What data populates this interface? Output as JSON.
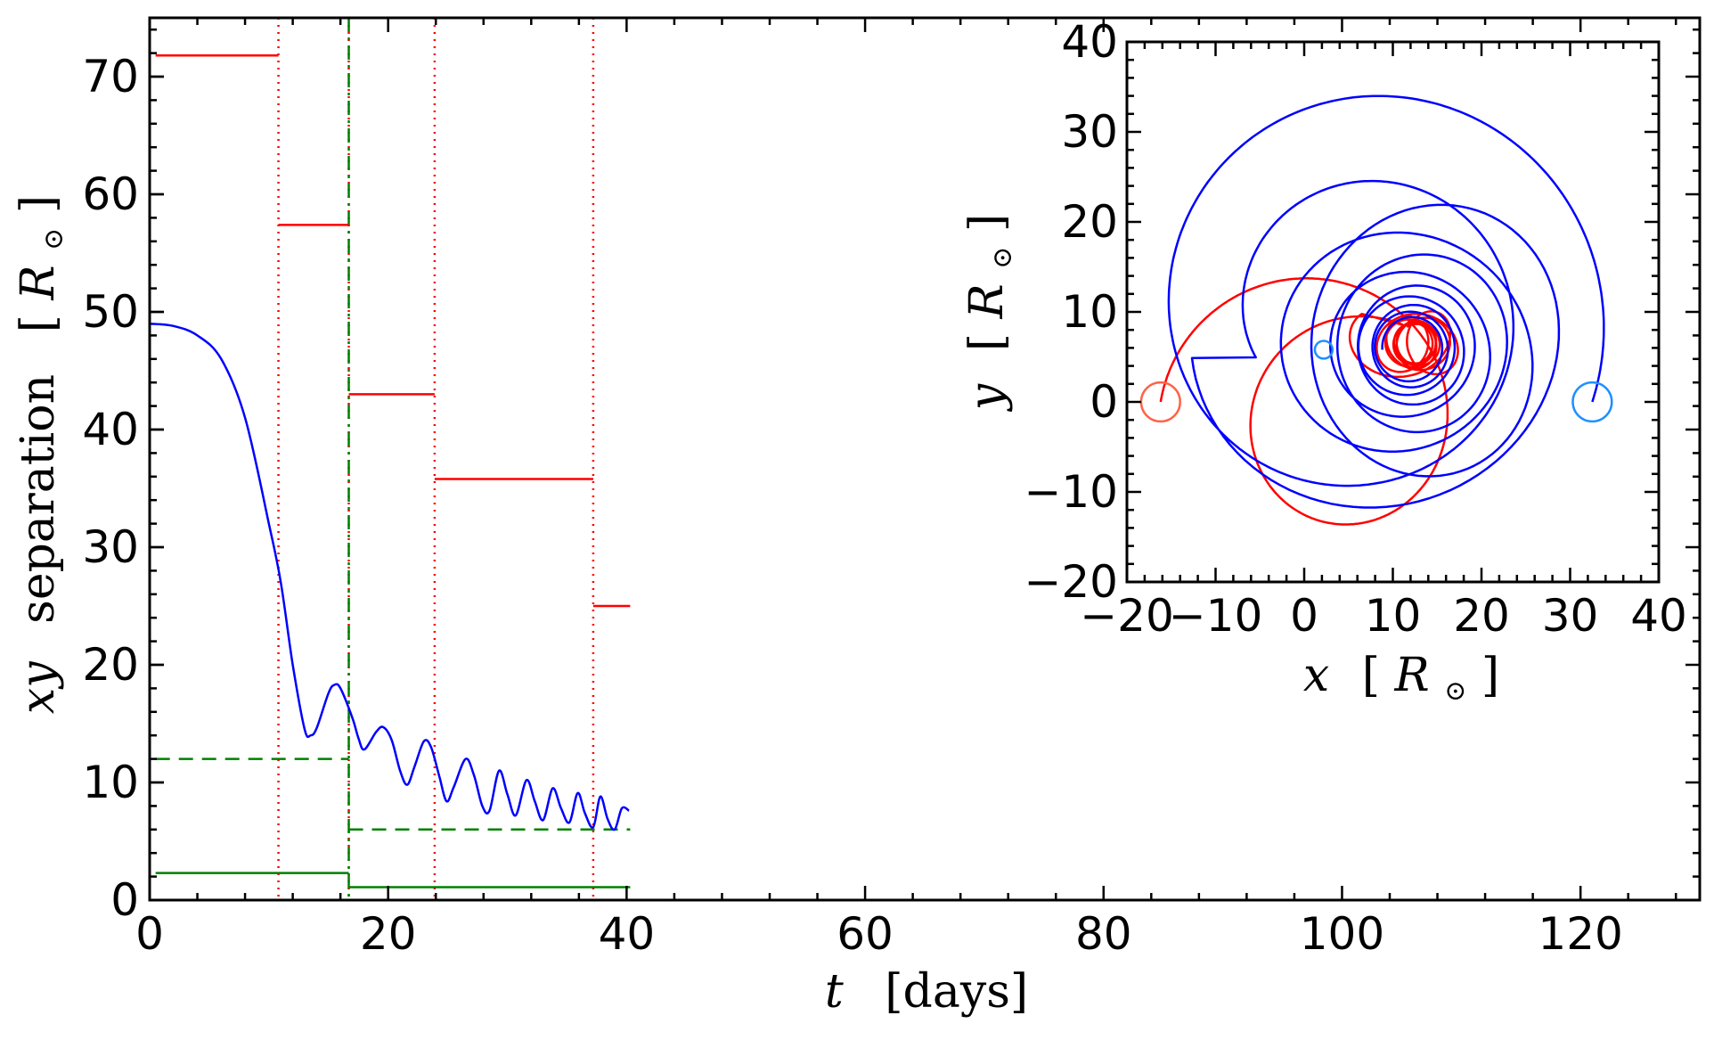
{
  "chart_data": [
    {
      "type": "line",
      "title": "",
      "xlabel_var": "t",
      "xlabel_unit": "[days]",
      "ylabel_var": "xy",
      "ylabel_word": "separation",
      "ylabel_unit_bracket_open": "[",
      "ylabel_unit_var": "R",
      "ylabel_unit_sub": "⊙",
      "ylabel_unit_bracket_close": "]",
      "xlim": [
        0,
        130
      ],
      "ylim": [
        0,
        75
      ],
      "xticks": [
        0,
        20,
        40,
        60,
        80,
        100,
        120
      ],
      "yticks": [
        0,
        10,
        20,
        30,
        40,
        50,
        60,
        70
      ],
      "grid": false,
      "colors": {
        "separation": "#0000ff",
        "red": "#ff0000",
        "green": "#008000"
      },
      "separation_curve": {
        "color": "#0000ff",
        "points": [
          [
            0,
            49
          ],
          [
            2,
            48.8
          ],
          [
            4,
            48
          ],
          [
            6,
            46
          ],
          [
            8,
            41
          ],
          [
            10,
            32
          ],
          [
            11,
            27
          ],
          [
            12,
            20
          ],
          [
            13,
            14.5
          ],
          [
            13.5,
            14
          ],
          [
            14,
            14.6
          ],
          [
            15,
            17.6
          ],
          [
            15.5,
            18.3
          ],
          [
            16,
            18
          ],
          [
            17,
            15.5
          ],
          [
            17.5,
            13.8
          ],
          [
            18,
            12.8
          ],
          [
            19,
            14.3
          ],
          [
            19.6,
            14.7
          ],
          [
            20.3,
            13.6
          ],
          [
            21,
            11
          ],
          [
            21.6,
            9.8
          ],
          [
            22.2,
            11.3
          ],
          [
            23,
            13.5
          ],
          [
            23.6,
            13
          ],
          [
            24.3,
            10.5
          ],
          [
            24.9,
            8.4
          ],
          [
            25.5,
            9.6
          ],
          [
            26.5,
            12
          ],
          [
            27.2,
            10.6
          ],
          [
            27.9,
            8
          ],
          [
            28.5,
            7.6
          ],
          [
            29.3,
            11
          ],
          [
            30,
            9
          ],
          [
            30.7,
            7.2
          ],
          [
            31.6,
            10.2
          ],
          [
            32.3,
            8.4
          ],
          [
            33,
            6.8
          ],
          [
            33.8,
            9.5
          ],
          [
            34.5,
            7.8
          ],
          [
            35.2,
            6.6
          ],
          [
            35.9,
            9.1
          ],
          [
            36.5,
            7.4
          ],
          [
            37.2,
            6.2
          ],
          [
            37.8,
            8.8
          ],
          [
            38.4,
            6.9
          ],
          [
            39,
            6
          ],
          [
            39.6,
            7.8
          ],
          [
            40.2,
            7.6
          ]
        ]
      },
      "red_steps": [
        {
          "x0": 0.5,
          "x1": 10.8,
          "y": 71.8
        },
        {
          "x0": 10.8,
          "x1": 16.7,
          "y": 57.4
        },
        {
          "x0": 16.7,
          "x1": 23.9,
          "y": 43.0
        },
        {
          "x0": 23.9,
          "x1": 37.2,
          "y": 35.8
        },
        {
          "x0": 37.2,
          "x1": 40.3,
          "y": 25.0
        }
      ],
      "red_dotted_vlines": [
        10.8,
        16.7,
        23.9,
        37.2
      ],
      "green_dashdot_vline": 16.7,
      "green_dashed_steps": [
        {
          "x0": 0.5,
          "x1": 16.7,
          "y": 12.0
        },
        {
          "x0": 16.7,
          "x1": 40.3,
          "y": 6.0
        }
      ],
      "green_solid_steps": [
        {
          "x0": 0.5,
          "x1": 16.7,
          "y": 2.3
        },
        {
          "x0": 16.7,
          "x1": 40.3,
          "y": 1.1
        }
      ]
    },
    {
      "type": "line",
      "title": "",
      "xlabel_var": "x",
      "xlabel_unit_bracket_open": "[",
      "xlabel_unit_var": "R",
      "xlabel_unit_sub": "⊙",
      "xlabel_unit_bracket_close": "]",
      "ylabel_var": "y",
      "ylabel_unit_bracket_open": "[",
      "ylabel_unit_var": "R",
      "ylabel_unit_sub": "⊙",
      "ylabel_unit_bracket_close": "]",
      "xlim": [
        -20,
        40
      ],
      "ylim": [
        -20,
        40
      ],
      "xticks": [
        -20,
        -10,
        0,
        10,
        20,
        30,
        40
      ],
      "yticks": [
        -20,
        -10,
        0,
        10,
        20,
        30,
        40
      ],
      "grid": false,
      "blue_start": [
        32.5,
        0
      ],
      "red_start": [
        -16.2,
        0
      ],
      "blue_spiral_center": [
        12,
        6
      ],
      "red_spiral_center": [
        12.5,
        6.5
      ],
      "star_markers": [
        {
          "x": 32.5,
          "y": 0,
          "r": 2.2,
          "color": "#1e90ff"
        },
        {
          "x": -16.2,
          "y": 0,
          "r": 2.2,
          "color": "#ff6347"
        },
        {
          "x": 2.2,
          "y": 5.8,
          "r": 1.0,
          "color": "#1e90ff"
        }
      ],
      "colors": {
        "blue_orbit": "#0000ff",
        "red_orbit": "#ff0000"
      }
    }
  ]
}
